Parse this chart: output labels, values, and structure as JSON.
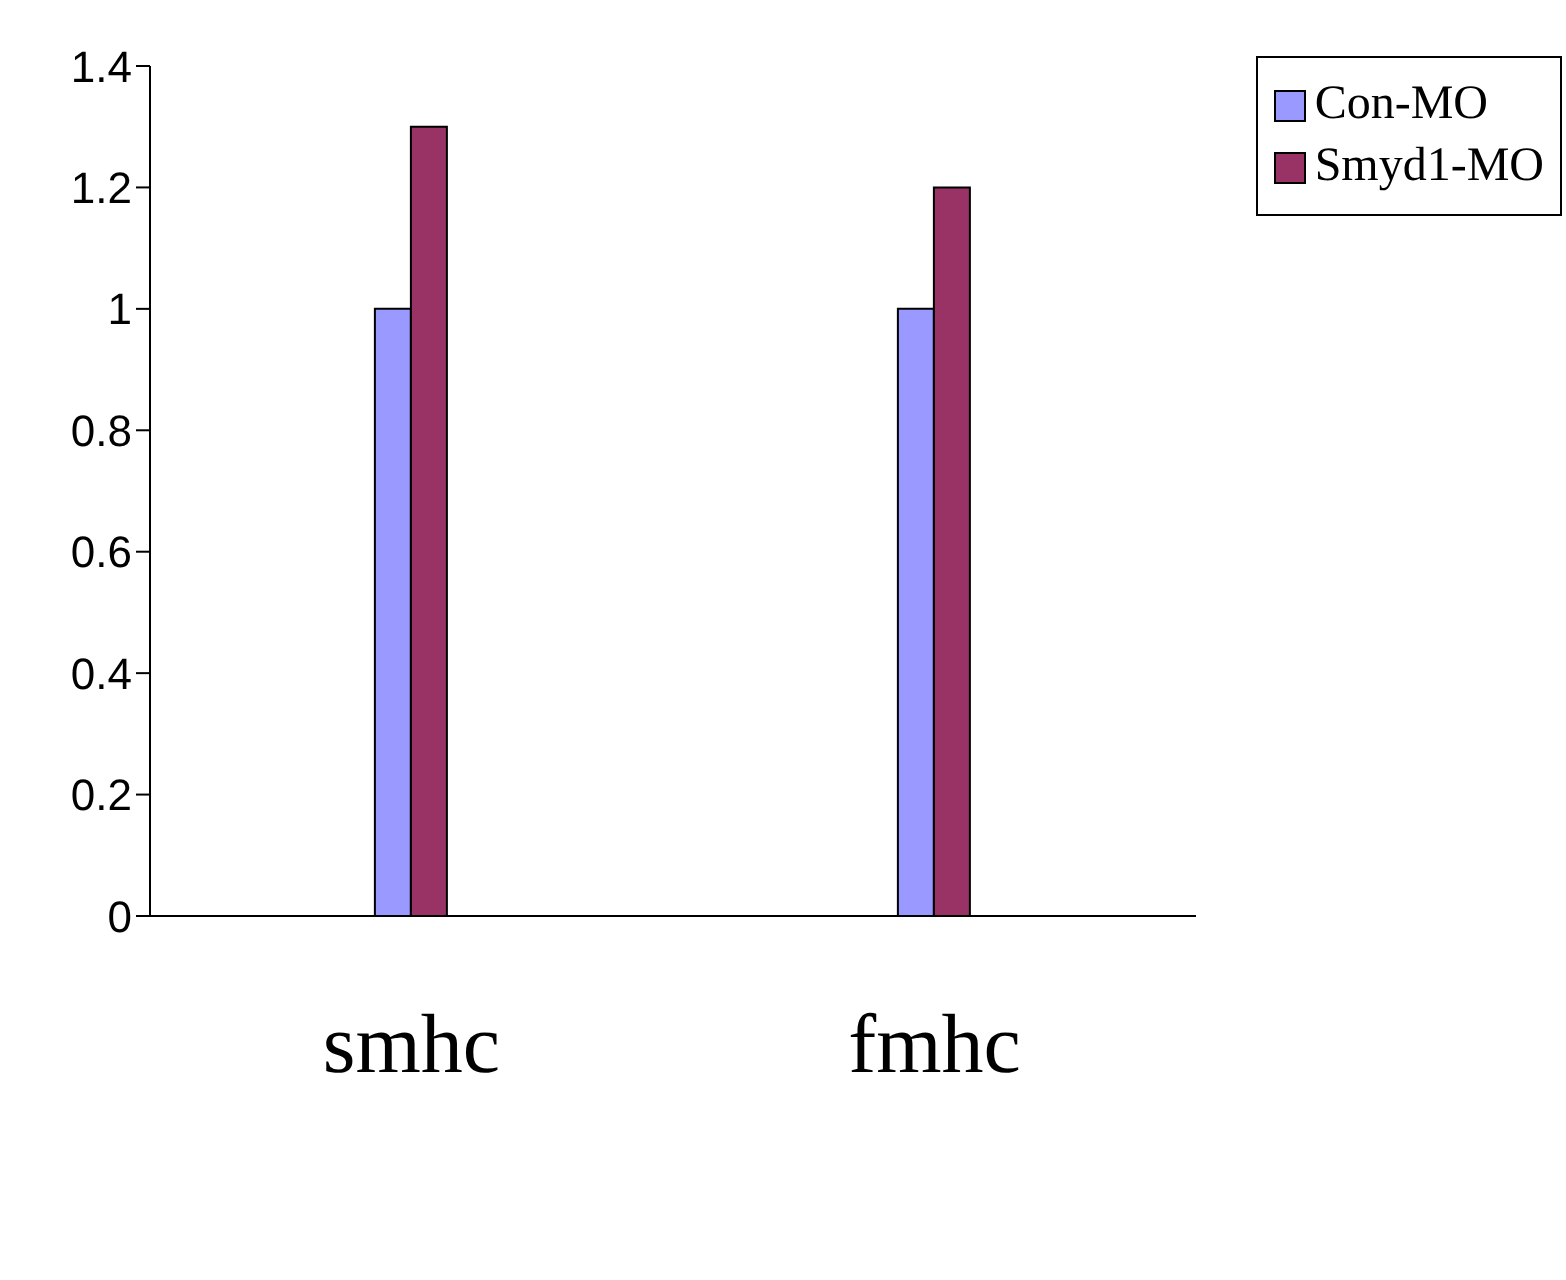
{
  "chart_data": {
    "type": "bar",
    "categories": [
      "smhc",
      "fmhc"
    ],
    "series": [
      {
        "name": "Con-MO",
        "color": "#9999ff",
        "values": [
          1,
          1
        ]
      },
      {
        "name": "Smyd1-MO",
        "color": "#993366",
        "values": [
          1.3,
          1.2
        ]
      }
    ],
    "ylim": [
      0,
      1.4
    ],
    "yticks": [
      0,
      0.2,
      0.4,
      0.6,
      0.8,
      1,
      1.2,
      1.4
    ],
    "legend": "top right"
  }
}
